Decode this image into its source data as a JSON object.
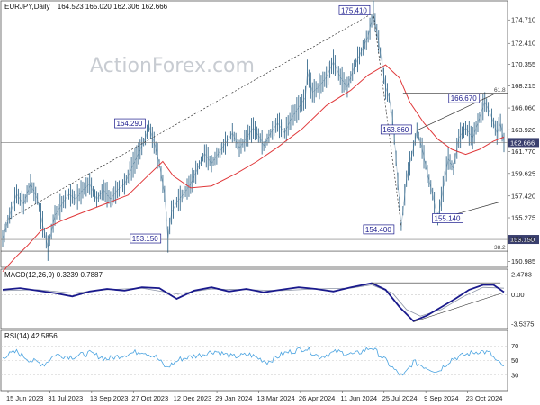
{
  "header": {
    "title": "EURJPY,Daily",
    "ohlc": "164.523 165.020 162.306 162.666"
  },
  "watermark": "ActionForex.com",
  "chart_data": [
    {
      "type": "line",
      "panel": "price",
      "x_dates": [
        "15 Jun 2023",
        "31 Jul 2023",
        "13 Sep 2023",
        "27 Oct 2023",
        "12 Dec 2023",
        "29 Jan 2024",
        "13 Mar 2024",
        "26 Apr 2024",
        "11 Jun 2024",
        "25 Jul 2024",
        "9 Sep 2024",
        "23 Oct 2024"
      ],
      "yticks": [
        "174.710",
        "172.410",
        "170.355",
        "168.215",
        "166.060",
        "163.920",
        "161.770",
        "159.625",
        "157.420",
        "155.275",
        "153.150",
        "150.985"
      ],
      "ylim": [
        150.5,
        176.5
      ],
      "series": [
        {
          "name": "",
          "color": "#3b6d8f",
          "role": "price",
          "values": [
            [
              0,
              153.2
            ],
            [
              4,
              155.5
            ],
            [
              8,
              157.6
            ],
            [
              12,
              156.6
            ],
            [
              16,
              158.6
            ],
            [
              20,
              157.1
            ],
            [
              24,
              153.8
            ],
            [
              26,
              152.3
            ],
            [
              30,
              155.5
            ],
            [
              34,
              156.6
            ],
            [
              38,
              157.6
            ],
            [
              42,
              157.1
            ],
            [
              46,
              158.0
            ],
            [
              50,
              158.6
            ],
            [
              54,
              157.1
            ],
            [
              58,
              158.0
            ],
            [
              62,
              157.1
            ],
            [
              66,
              158.0
            ],
            [
              70,
              158.6
            ],
            [
              74,
              160.1
            ],
            [
              78,
              161.6
            ],
            [
              82,
              163.1
            ],
            [
              84,
              164.29
            ],
            [
              88,
              162.1
            ],
            [
              90,
              160.6
            ],
            [
              93,
              157.6
            ],
            [
              95,
              153.15
            ],
            [
              97,
              155.8
            ],
            [
              100,
              156.8
            ],
            [
              104,
              157.6
            ],
            [
              108,
              158.6
            ],
            [
              112,
              160.1
            ],
            [
              116,
              161.6
            ],
            [
              120,
              160.6
            ],
            [
              124,
              161.6
            ],
            [
              128,
              162.6
            ],
            [
              132,
              163.6
            ],
            [
              136,
              162.1
            ],
            [
              140,
              163.1
            ],
            [
              144,
              164.1
            ],
            [
              148,
              163.1
            ],
            [
              150,
              162.3
            ],
            [
              154,
              163.6
            ],
            [
              158,
              164.6
            ],
            [
              162,
              163.6
            ],
            [
              166,
              165.1
            ],
            [
              170,
              166.1
            ],
            [
              174,
              167.1
            ],
            [
              175,
              169.6
            ],
            [
              178,
              167.6
            ],
            [
              182,
              168.2
            ],
            [
              186,
              169.1
            ],
            [
              190,
              170.6
            ],
            [
              194,
              169.1
            ],
            [
              198,
              168.1
            ],
            [
              202,
              170.1
            ],
            [
              206,
              171.6
            ],
            [
              210,
              173.1
            ],
            [
              213,
              175.41
            ],
            [
              216,
              172.6
            ],
            [
              220,
              168.1
            ],
            [
              222,
              167.1
            ],
            [
              224,
              165.1
            ],
            [
              226,
              161.1
            ],
            [
              229,
              154.4
            ],
            [
              232,
              159.1
            ],
            [
              236,
              162.1
            ],
            [
              238,
              163.86
            ],
            [
              241,
              162.1
            ],
            [
              244,
              159.6
            ],
            [
              247,
              157.6
            ],
            [
              250,
              155.14
            ],
            [
              253,
              158.1
            ],
            [
              256,
              161.1
            ],
            [
              259,
              160.1
            ],
            [
              262,
              163.1
            ],
            [
              266,
              164.1
            ],
            [
              270,
              163.1
            ],
            [
              274,
              165.1
            ],
            [
              277,
              166.67
            ],
            [
              280,
              165.6
            ],
            [
              282,
              164.6
            ],
            [
              284,
              163.6
            ],
            [
              286,
              164.6
            ],
            [
              288,
              162.666
            ]
          ]
        },
        {
          "name": "",
          "color": "#e0383a",
          "role": "moving-average",
          "values": [
            [
              0,
              150.0
            ],
            [
              8,
              151.5
            ],
            [
              14,
              152.5
            ],
            [
              22,
              154.0
            ],
            [
              34,
              155.0
            ],
            [
              46,
              155.8
            ],
            [
              60,
              156.7
            ],
            [
              72,
              157.5
            ],
            [
              84,
              159.5
            ],
            [
              92,
              160.8
            ],
            [
              98,
              159.4
            ],
            [
              108,
              158.2
            ],
            [
              120,
              158.4
            ],
            [
              134,
              159.6
            ],
            [
              146,
              160.8
            ],
            [
              158,
              162.2
            ],
            [
              172,
              164.0
            ],
            [
              186,
              166.3
            ],
            [
              200,
              167.8
            ],
            [
              210,
              169.3
            ],
            [
              220,
              170.3
            ],
            [
              228,
              169.0
            ],
            [
              234,
              166.6
            ],
            [
              242,
              164.6
            ],
            [
              250,
              163.0
            ],
            [
              258,
              162.0
            ],
            [
              266,
              161.5
            ],
            [
              274,
              162.0
            ],
            [
              282,
              162.8
            ],
            [
              288,
              163.2
            ]
          ]
        }
      ],
      "levels": [
        {
          "label": "153.150",
          "value": 153.15
        },
        {
          "label": "162.666",
          "value": 162.666
        }
      ],
      "annotations": [
        "175.410",
        "164.290",
        "153.150",
        "163.860",
        "166.670",
        "154.400",
        "155.140",
        "61.8",
        "38.2"
      ]
    },
    {
      "type": "line",
      "panel": "macd",
      "header": "MACD(12,26,9) 0.3239 0.7887",
      "yticks": [
        "2.4783",
        "0.00",
        "-3.5375"
      ],
      "ylim": [
        -4.0,
        3.0
      ],
      "series": [
        {
          "name": "",
          "color": "#1a1a8c",
          "values": [
            [
              0,
              0.6
            ],
            [
              10,
              0.8
            ],
            [
              20,
              0.5
            ],
            [
              30,
              0.2
            ],
            [
              40,
              -0.2
            ],
            [
              50,
              0.4
            ],
            [
              60,
              0.7
            ],
            [
              70,
              0.5
            ],
            [
              80,
              0.9
            ],
            [
              90,
              0.8
            ],
            [
              100,
              -0.5
            ],
            [
              110,
              0.5
            ],
            [
              120,
              0.9
            ],
            [
              130,
              0.4
            ],
            [
              140,
              0.7
            ],
            [
              150,
              0.3
            ],
            [
              160,
              0.6
            ],
            [
              170,
              0.9
            ],
            [
              180,
              0.7
            ],
            [
              190,
              0.4
            ],
            [
              200,
              0.9
            ],
            [
              212,
              1.4
            ],
            [
              220,
              0.6
            ],
            [
              228,
              -1.5
            ],
            [
              236,
              -3.2
            ],
            [
              244,
              -2.5
            ],
            [
              252,
              -1.5
            ],
            [
              260,
              -0.5
            ],
            [
              268,
              0.6
            ],
            [
              276,
              1.2
            ],
            [
              282,
              1.2
            ],
            [
              288,
              0.3239
            ]
          ]
        },
        {
          "name": "",
          "color": "#8c94a6",
          "values": [
            [
              0,
              0.5
            ],
            [
              20,
              0.6
            ],
            [
              40,
              0.2
            ],
            [
              60,
              0.6
            ],
            [
              80,
              0.8
            ],
            [
              100,
              0.1
            ],
            [
              120,
              0.7
            ],
            [
              140,
              0.6
            ],
            [
              160,
              0.5
            ],
            [
              180,
              0.7
            ],
            [
              200,
              0.8
            ],
            [
              212,
              1.2
            ],
            [
              224,
              0.2
            ],
            [
              232,
              -1.8
            ],
            [
              240,
              -2.6
            ],
            [
              252,
              -1.8
            ],
            [
              264,
              -0.3
            ],
            [
              276,
              0.9
            ],
            [
              288,
              0.7887
            ]
          ]
        }
      ]
    },
    {
      "type": "line",
      "panel": "rsi",
      "header": "RSI(14) 42.5856",
      "yticks": [
        "70",
        "50",
        "30"
      ],
      "ylim": [
        10,
        90
      ],
      "series": [
        {
          "name": "",
          "color": "#4aa3e0",
          "values": [
            [
              0,
              55
            ],
            [
              8,
              62
            ],
            [
              16,
              50
            ],
            [
              24,
              45
            ],
            [
              30,
              58
            ],
            [
              40,
              55
            ],
            [
              50,
              60
            ],
            [
              60,
              52
            ],
            [
              70,
              58
            ],
            [
              80,
              63
            ],
            [
              88,
              55
            ],
            [
              94,
              40
            ],
            [
              102,
              52
            ],
            [
              112,
              57
            ],
            [
              122,
              63
            ],
            [
              132,
              55
            ],
            [
              142,
              58
            ],
            [
              152,
              48
            ],
            [
              162,
              60
            ],
            [
              174,
              67
            ],
            [
              182,
              55
            ],
            [
              192,
              62
            ],
            [
              202,
              58
            ],
            [
              212,
              68
            ],
            [
              220,
              50
            ],
            [
              226,
              35
            ],
            [
              230,
              28
            ],
            [
              236,
              48
            ],
            [
              244,
              40
            ],
            [
              250,
              35
            ],
            [
              258,
              52
            ],
            [
              266,
              58
            ],
            [
              274,
              63
            ],
            [
              280,
              60
            ],
            [
              284,
              48
            ],
            [
              288,
              42.5856
            ]
          ]
        }
      ]
    }
  ],
  "x_count": 288
}
